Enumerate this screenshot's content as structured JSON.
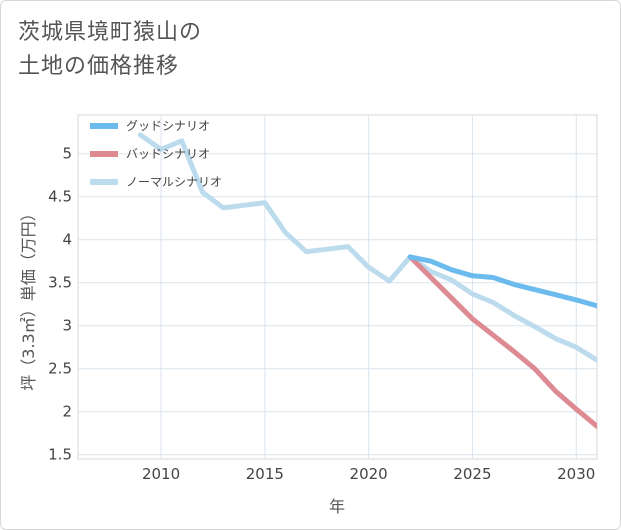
{
  "title_lines": [
    "茨城県境町猿山の",
    "土地の価格推移"
  ],
  "chart_data": {
    "type": "line",
    "xlabel": "年",
    "ylabel": "坪（3.3㎡）単価（万円）",
    "xlim": [
      2006,
      2031
    ],
    "ylim": [
      1.45,
      5.45
    ],
    "x_ticks": [
      2010,
      2015,
      2020,
      2025,
      2030
    ],
    "y_ticks": [
      1.5,
      2,
      2.5,
      3,
      3.5,
      4,
      4.5,
      5
    ],
    "y_tick_labels": [
      "1.5",
      "2",
      "2.5",
      "3",
      "3.5",
      "4",
      "4.5",
      "5"
    ],
    "x_tick_labels": [
      "2010",
      "2015",
      "2020",
      "2025",
      "2030"
    ],
    "grid": true,
    "legend_position": "top-left",
    "series": [
      {
        "name": "グッドシナリオ",
        "color": "#6cbbee",
        "x": [
          2022,
          2023,
          2024,
          2025,
          2026,
          2027,
          2028,
          2029,
          2030,
          2031
        ],
        "y": [
          3.8,
          3.75,
          3.65,
          3.58,
          3.56,
          3.48,
          3.42,
          3.36,
          3.3,
          3.23
        ]
      },
      {
        "name": "バッドシナリオ",
        "color": "#dd8a93",
        "x": [
          2022,
          2023,
          2024,
          2025,
          2026,
          2027,
          2028,
          2029,
          2030,
          2031
        ],
        "y": [
          3.8,
          3.56,
          3.32,
          3.08,
          2.89,
          2.7,
          2.5,
          2.24,
          2.03,
          1.83
        ]
      },
      {
        "name": "ノーマルシナリオ",
        "color": "#bcdcee",
        "x": [
          2009,
          2010,
          2011,
          2012,
          2013,
          2014,
          2015,
          2016,
          2017,
          2018,
          2019,
          2020,
          2021,
          2022,
          2023,
          2024,
          2025,
          2026,
          2027,
          2028,
          2029,
          2030,
          2031
        ],
        "y": [
          5.22,
          5.05,
          5.15,
          4.55,
          4.37,
          4.4,
          4.43,
          4.08,
          3.86,
          3.89,
          3.92,
          3.68,
          3.52,
          3.8,
          3.63,
          3.53,
          3.37,
          3.27,
          3.12,
          2.99,
          2.85,
          2.75,
          2.6
        ]
      }
    ]
  }
}
